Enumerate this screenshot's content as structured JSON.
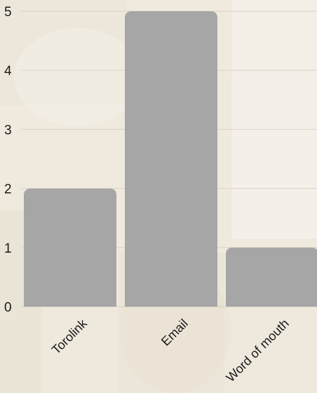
{
  "chart_data": {
    "type": "bar",
    "categories": [
      "Torolink",
      "Email",
      "Word of mouth"
    ],
    "values": [
      2,
      5,
      1
    ],
    "ylim": [
      0,
      5
    ],
    "yticks": [
      0,
      1,
      2,
      3,
      4,
      5
    ],
    "grid": true,
    "bar_color": "#a6a6a6",
    "grid_color": "#d9d3c6"
  }
}
